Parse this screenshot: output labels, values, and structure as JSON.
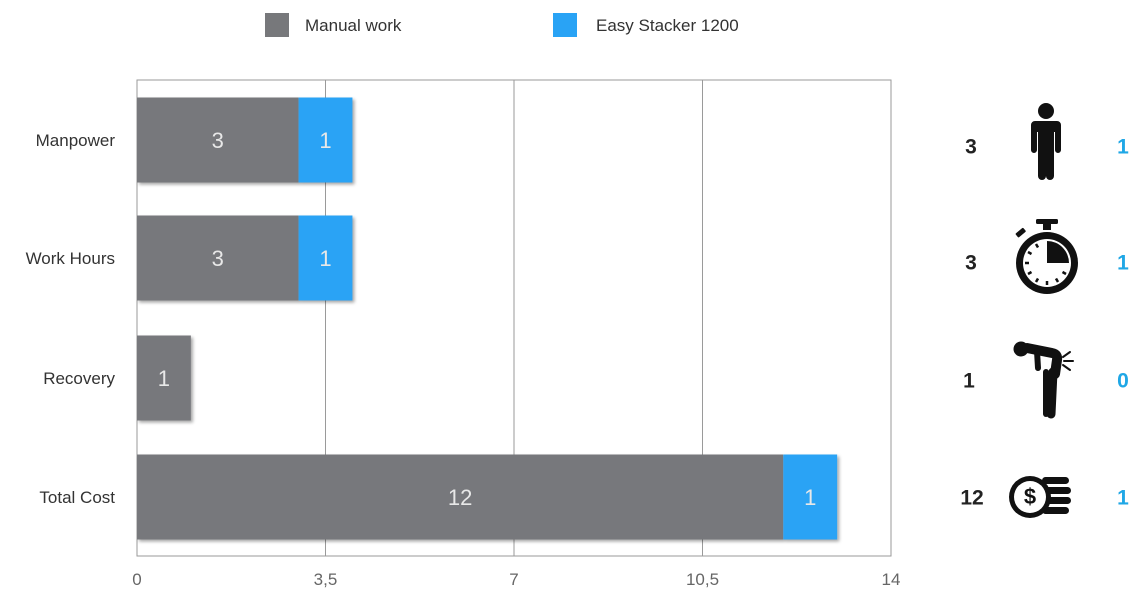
{
  "legend": {
    "items": [
      {
        "label": "Manual work",
        "color": "#77787b"
      },
      {
        "label": "Easy Stacker 1200",
        "color": "#29a3f5"
      }
    ]
  },
  "chart_data": {
    "type": "bar",
    "orientation": "horizontal",
    "stacked": true,
    "categories": [
      "Manpower",
      "Work Hours",
      "Recovery",
      "Total Cost"
    ],
    "series": [
      {
        "name": "Manual work",
        "values": [
          3,
          3,
          1,
          12
        ],
        "color": "#77787b"
      },
      {
        "name": "Easy Stacker 1200",
        "values": [
          1,
          1,
          0,
          1
        ],
        "color": "#29a3f5"
      }
    ],
    "x_ticks": [
      "0",
      "3,5",
      "7",
      "10,5",
      "14"
    ],
    "x_tick_values": [
      0,
      3.5,
      7,
      10.5,
      14
    ],
    "xlim": [
      0,
      14
    ],
    "grid": "vertical",
    "legend_position": "top"
  },
  "side_panel": {
    "rows": [
      {
        "manual": "3",
        "stacker": "1",
        "icon": "person-icon"
      },
      {
        "manual": "3",
        "stacker": "1",
        "icon": "stopwatch-icon"
      },
      {
        "manual": "1",
        "stacker": "0",
        "icon": "back-pain-icon"
      },
      {
        "manual": "12",
        "stacker": "1",
        "icon": "coins-icon"
      }
    ],
    "manual_color": "#222222",
    "stacker_color": "#1fa7e6"
  }
}
